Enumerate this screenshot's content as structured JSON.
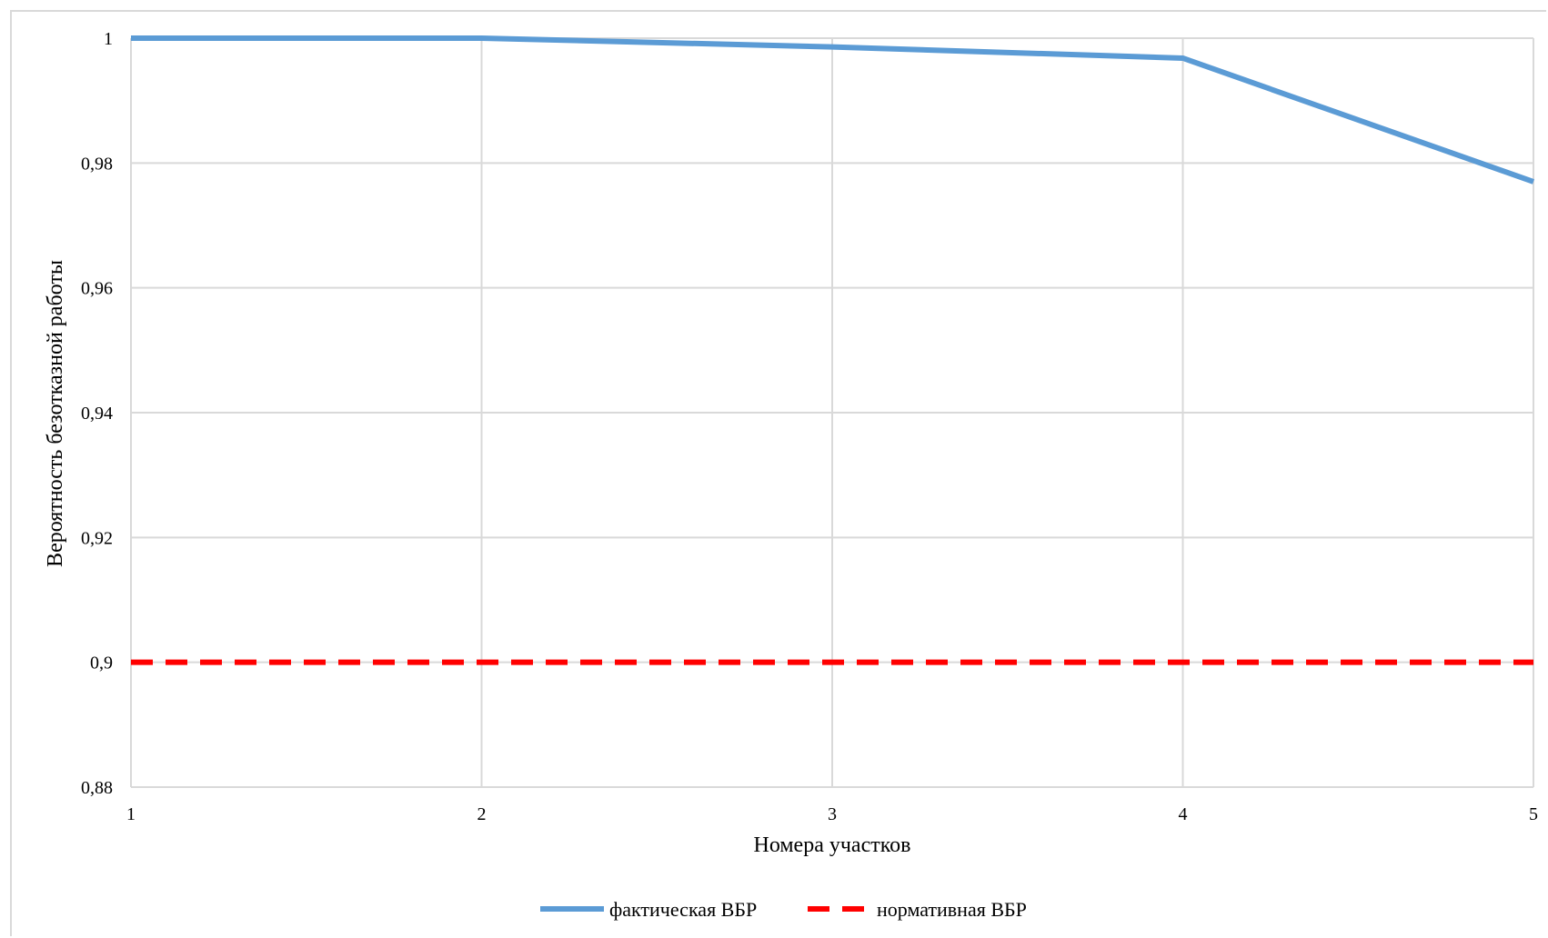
{
  "chart_data": {
    "type": "line",
    "x": [
      1,
      2,
      3,
      4,
      5
    ],
    "xlim": [
      1,
      5
    ],
    "ylim": [
      0.88,
      1
    ],
    "y_ticks": [
      0.88,
      0.9,
      0.92,
      0.94,
      0.96,
      0.98,
      1
    ],
    "x_tick_labels": [
      "1",
      "2",
      "3",
      "4",
      "5"
    ],
    "y_tick_labels": [
      "0,88",
      "0,9",
      "0,92",
      "0,94",
      "0,96",
      "0,98",
      "1"
    ],
    "xlabel": "Номера участков",
    "ylabel": "Вероятность безотказной работы",
    "grid": true,
    "legend_position": "bottom",
    "series": [
      {
        "name": "фактическая ВБР",
        "values": [
          1.0,
          1.0,
          0.9986,
          0.9968,
          0.977
        ],
        "color": "#5b9bd5",
        "style": "solid"
      },
      {
        "name": "нормативная ВБР",
        "values": [
          0.9,
          0.9,
          0.9,
          0.9,
          0.9
        ],
        "color": "#ff0000",
        "style": "dashed"
      }
    ]
  }
}
